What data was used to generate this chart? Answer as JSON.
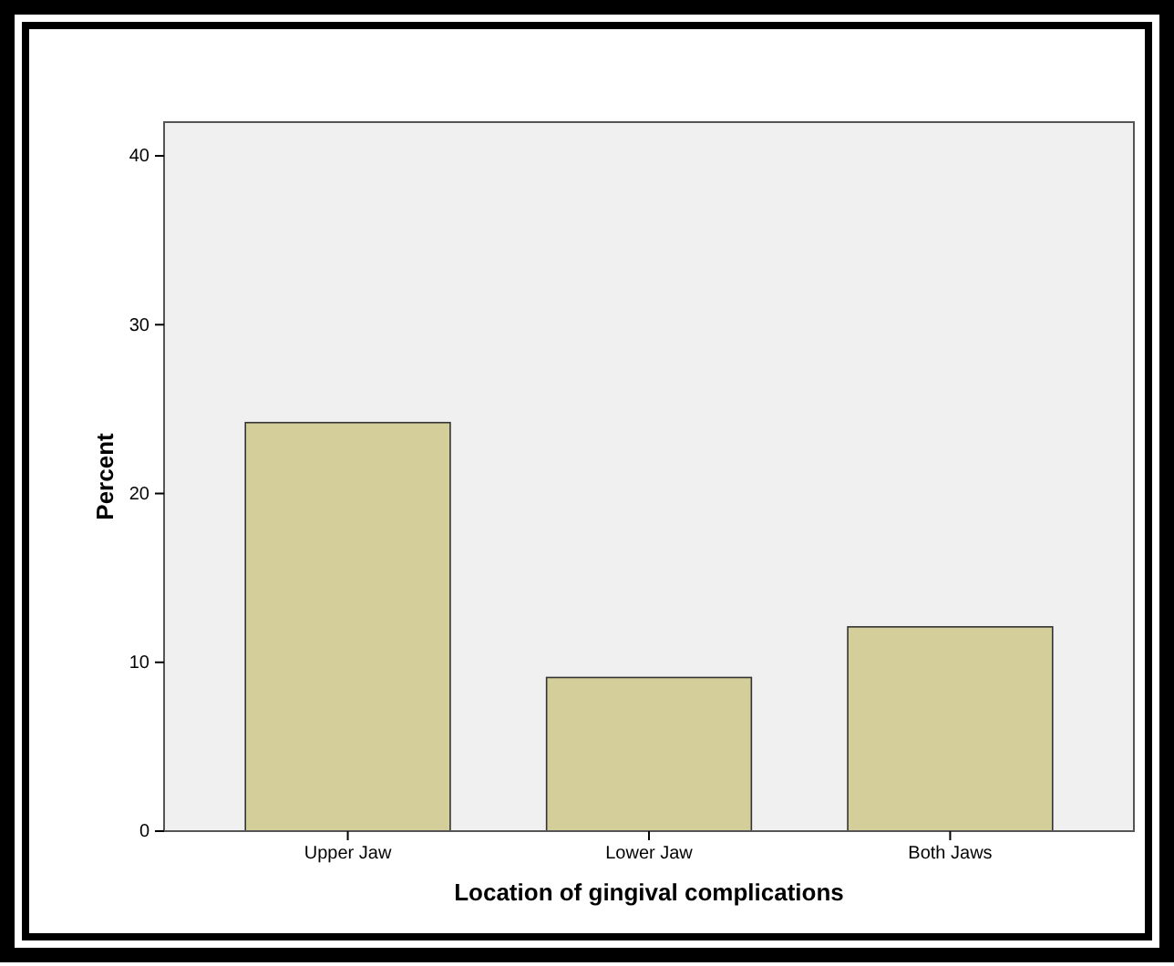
{
  "chart_data": {
    "type": "bar",
    "xlabel": "Location of gingival complications",
    "ylabel": "Percent",
    "categories": [
      "Upper Jaw",
      "Lower Jaw",
      "Both Jaws"
    ],
    "values": [
      24.2,
      9.1,
      12.1
    ],
    "color": "#d4cf9a",
    "ylim": [
      0,
      42
    ],
    "yticks": [
      0,
      10,
      20,
      30,
      40
    ],
    "grid": false
  }
}
